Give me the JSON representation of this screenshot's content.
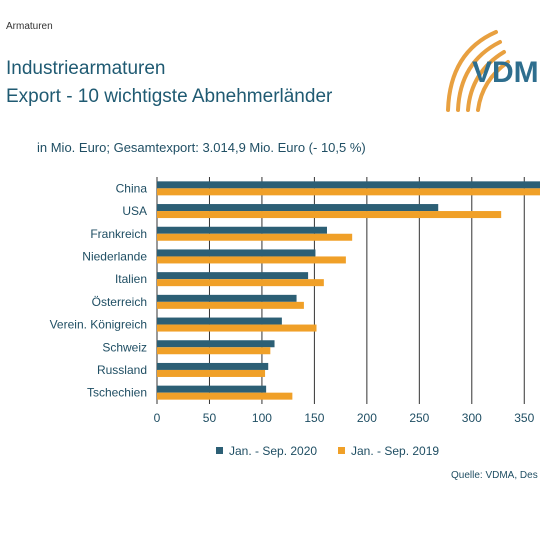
{
  "header": {
    "category": "Armaturen",
    "title_line1": "Industriearmaturen",
    "title_line2": "Export - 10 wichtigste Abnehmerländer",
    "subtitle": "in Mio. Euro; Gesamtexport: 3.014,9 Mio. Euro (- 10,5 %)"
  },
  "logo": {
    "text": "VDM",
    "color": "#2e6e8e",
    "arc_color": "#e8a040"
  },
  "source": "Quelle: VDMA, Des",
  "colors": {
    "series_2020": "#2c5f75",
    "series_2019": "#f0a028",
    "grid": "#333333",
    "text": "#1f4e63"
  },
  "chart_data": {
    "type": "bar",
    "orientation": "horizontal",
    "categories": [
      "China",
      "USA",
      "Frankreich",
      "Niederlande",
      "Italien",
      "Österreich",
      "Verein. Königreich",
      "Schweiz",
      "Russland",
      "Tschechien"
    ],
    "series": [
      {
        "name": "Jan. - Sep. 2020",
        "values": [
          375,
          268,
          162,
          151,
          144,
          133,
          119,
          112,
          106,
          104
        ]
      },
      {
        "name": "Jan. - Sep. 2019",
        "values": [
          375,
          328,
          186,
          180,
          159,
          140,
          152,
          108,
          103,
          129
        ]
      }
    ],
    "x_ticks": [
      "0",
      "50",
      "100",
      "150",
      "200",
      "250",
      "300",
      "350"
    ],
    "xlim": [
      0,
      365
    ],
    "grid": true,
    "legend_position": "bottom"
  }
}
